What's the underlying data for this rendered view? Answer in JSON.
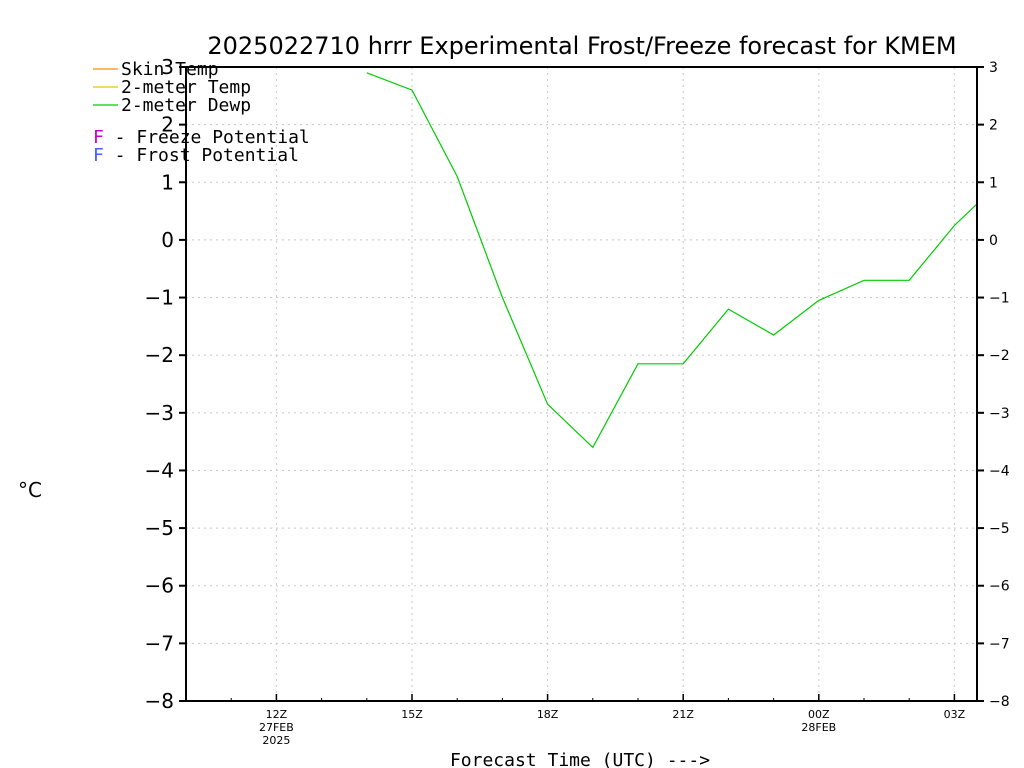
{
  "chart_data": {
    "type": "line",
    "title": "2025022710 hrrr Experimental Frost/Freeze forecast for KMEM",
    "ylabel": "°C",
    "xlabel": "Forecast Time (UTC) --->",
    "ylim": [
      -8,
      3
    ],
    "xlim": [
      10,
      27.5
    ],
    "y_ticks": [
      "3",
      "2",
      "1",
      "0",
      "−1",
      "−2",
      "−3",
      "−4",
      "−5",
      "−6",
      "−7",
      "−8"
    ],
    "x_ticks": [
      {
        "x": 12,
        "label": "12Z",
        "sub": [
          "27FEB",
          "2025"
        ]
      },
      {
        "x": 15,
        "label": "15Z",
        "sub": []
      },
      {
        "x": 18,
        "label": "18Z",
        "sub": []
      },
      {
        "x": 21,
        "label": "21Z",
        "sub": []
      },
      {
        "x": 24,
        "label": "00Z",
        "sub": [
          "28FEB"
        ]
      },
      {
        "x": 27,
        "label": "03Z",
        "sub": []
      }
    ],
    "legend": [
      {
        "label": "Skin Temp",
        "color": "#ff8c00"
      },
      {
        "label": "2-meter Temp",
        "color": "#e6c800"
      },
      {
        "label": "2-meter Dewp",
        "color": "#00cc00"
      }
    ],
    "potential_legend": [
      {
        "letter": "F",
        "label": " - Freeze Potential",
        "color": "#cc00cc"
      },
      {
        "letter": "F",
        "label": " - Frost Potential",
        "color": "#4060ff"
      }
    ],
    "series": [
      {
        "name": "2-meter Dewp",
        "color": "#00cc00",
        "x": [
          14,
          15,
          16,
          17,
          18,
          19,
          20,
          21,
          22,
          23,
          24,
          25,
          26,
          27,
          28
        ],
        "values": [
          2.9,
          2.6,
          1.1,
          -1.0,
          -2.85,
          -3.6,
          -2.15,
          -2.15,
          -1.2,
          -1.65,
          -1.05,
          -0.7,
          -0.7,
          0.25,
          1.0
        ]
      }
    ],
    "grid": true,
    "legend_position": "top-left"
  }
}
